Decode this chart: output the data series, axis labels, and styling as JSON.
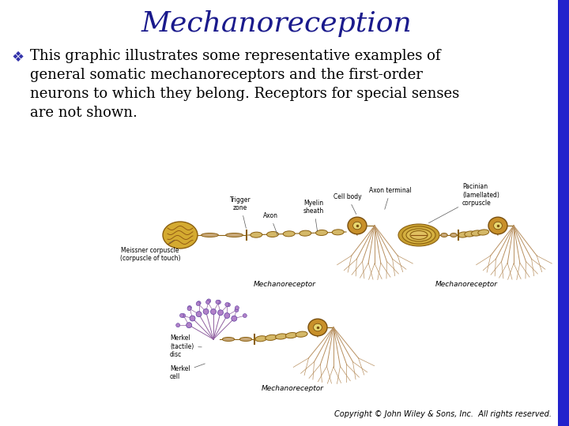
{
  "title": "Mechanoreception",
  "title_color": "#1a1a8c",
  "title_fontsize": 26,
  "title_font": "serif",
  "bullet_symbol": "❖",
  "bullet_color": "#3333aa",
  "bullet_fontsize": 13,
  "body_text_lines": [
    "This graphic illustrates some representative examples of",
    "general somatic mechanoreceptors and the first-order",
    "neurons to which they belong. Receptors for special senses",
    "are not shown."
  ],
  "body_fontsize": 13,
  "body_font": "serif",
  "body_color": "#000000",
  "copyright_text": "Copyright © John Wiley & Sons, Inc.  All rights reserved.",
  "copyright_fontsize": 7,
  "copyright_color": "#000000",
  "background_color": "#ffffff",
  "right_border_color": "#2222cc",
  "axon_color": "#c8a878",
  "receptor_color": "#d4a830",
  "receptor_edge": "#8b6010",
  "soma_color": "#c8902a",
  "soma_edge": "#7a5010",
  "nucleus_color": "#e8d070",
  "myelin_color": "#dfc070",
  "branch_color": "#b89060",
  "pacinian_color": "#c8a830",
  "merkel_color": "#9060b0",
  "label_fontsize": 5.5,
  "mechano_fontsize": 6.5
}
